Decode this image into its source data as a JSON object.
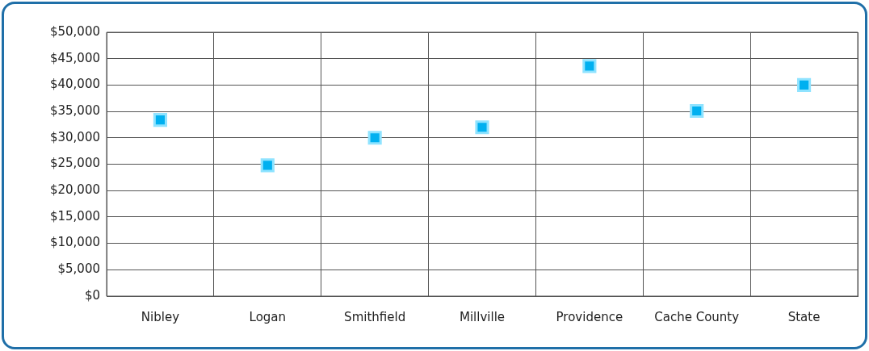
{
  "chart_data": {
    "type": "scatter",
    "categories": [
      "Nibley",
      "Logan",
      "Smithfield",
      "Millville",
      "Providence",
      "Cache County",
      "State"
    ],
    "values": [
      33400,
      24800,
      30000,
      32000,
      43600,
      35100,
      40000
    ],
    "color": "#00b0f0",
    "marker": "square",
    "grid": true,
    "legend": false,
    "ylim": [
      0,
      50000
    ],
    "yticks": [
      {
        "value": 0,
        "label": "$0"
      },
      {
        "value": 5000,
        "label": "$5,000"
      },
      {
        "value": 10000,
        "label": "$10,000"
      },
      {
        "value": 15000,
        "label": "$15,000"
      },
      {
        "value": 20000,
        "label": "$20,000"
      },
      {
        "value": 25000,
        "label": "$25,000"
      },
      {
        "value": 30000,
        "label": "$30,000"
      },
      {
        "value": 35000,
        "label": "$35,000"
      },
      {
        "value": 40000,
        "label": "$40,000"
      },
      {
        "value": 45000,
        "label": "$45,000"
      },
      {
        "value": 50000,
        "label": "$50,000"
      }
    ]
  }
}
